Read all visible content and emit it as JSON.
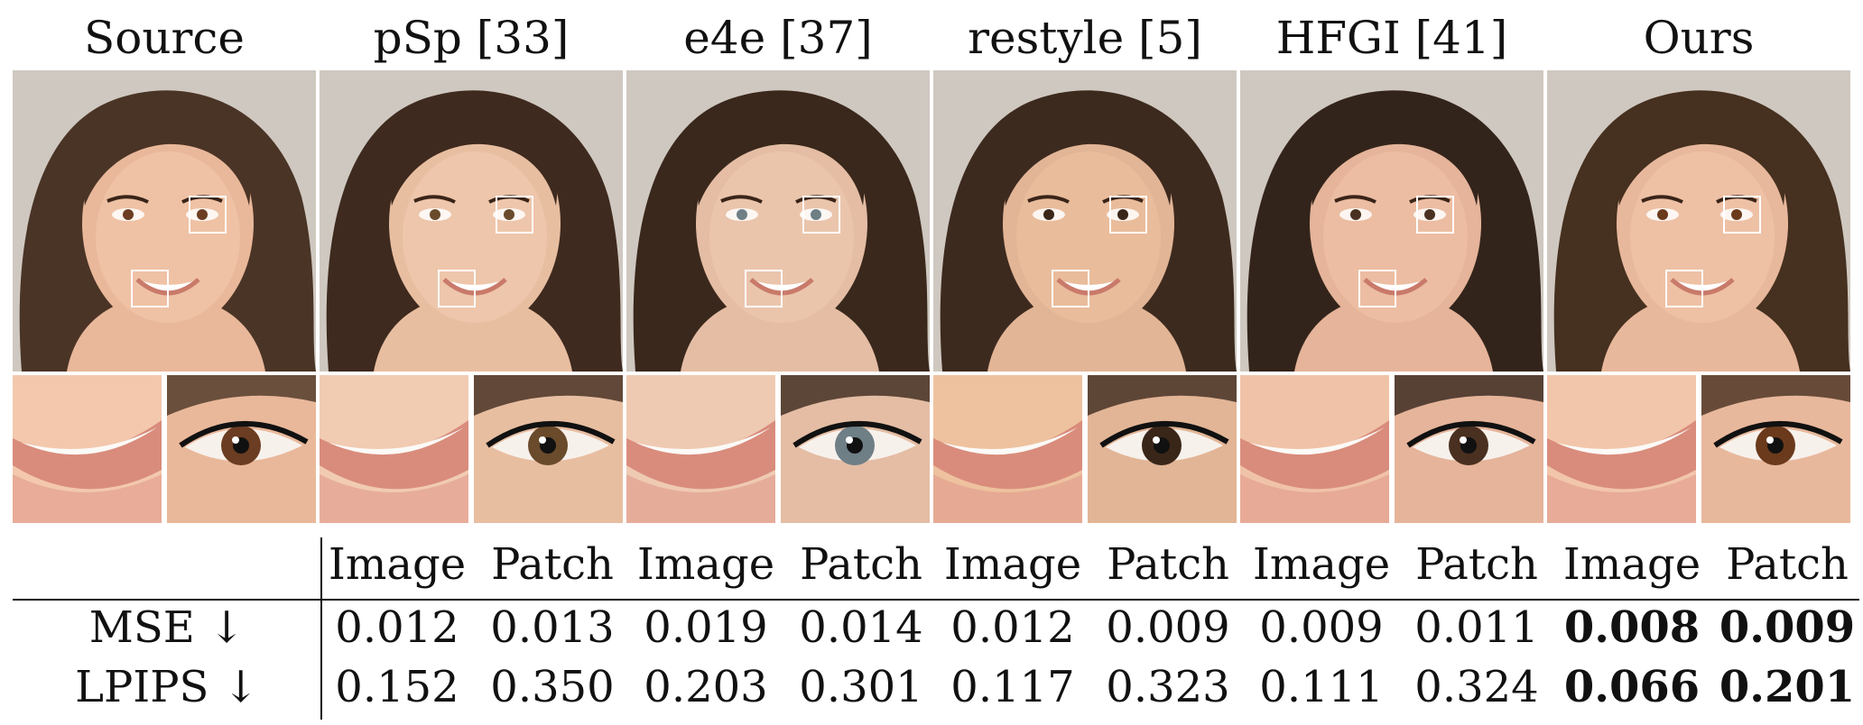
{
  "columns": [
    {
      "title": "Source",
      "hair": "#4a3426",
      "skin": "#e9b89a",
      "tone": "#f3c8ad",
      "iris": "#6b3d22"
    },
    {
      "title": "pSp [33]",
      "hair": "#3e2a1e",
      "skin": "#e8bea1",
      "tone": "#f1cbb2",
      "iris": "#6a4b2b"
    },
    {
      "title": "e4e [37]",
      "hair": "#3a281c",
      "skin": "#e4bda4",
      "tone": "#efcab3",
      "iris": "#6f7f86"
    },
    {
      "title": "restyle [5]",
      "hair": "#3d2a1f",
      "skin": "#e2b596",
      "tone": "#eec29f",
      "iris": "#3a2618"
    },
    {
      "title": "HFGI [41]",
      "hair": "#33241b",
      "skin": "#e5b49a",
      "tone": "#f0c3a8",
      "iris": "#4a3020"
    },
    {
      "title": "Ours",
      "hair": "#46301f",
      "skin": "#e8b89c",
      "tone": "#f2c6ab",
      "iris": "#6b3a1c"
    }
  ],
  "table": {
    "header": [
      "Image",
      "Patch",
      "Image",
      "Patch",
      "Image",
      "Patch",
      "Image",
      "Patch",
      "Image",
      "Patch"
    ],
    "rows": [
      {
        "label": "MSE ↓",
        "values": [
          "0.012",
          "0.013",
          "0.019",
          "0.014",
          "0.012",
          "0.009",
          "0.009",
          "0.011",
          "0.008",
          "0.009"
        ]
      },
      {
        "label": "LPIPS ↓",
        "values": [
          "0.152",
          "0.350",
          "0.203",
          "0.301",
          "0.117",
          "0.323",
          "0.111",
          "0.324",
          "0.066",
          "0.201"
        ]
      }
    ],
    "bold_from_index": 8
  }
}
